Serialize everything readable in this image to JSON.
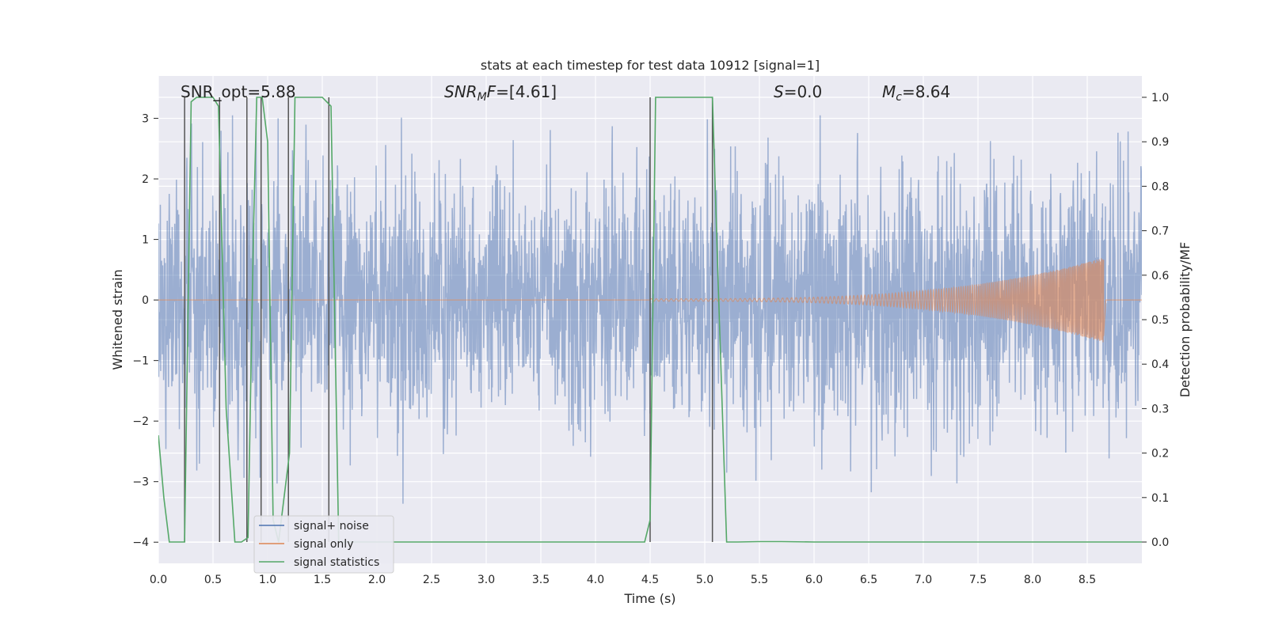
{
  "chart_data": {
    "type": "line",
    "title": "stats at each timestep for test data 10912 [signal=1]",
    "xlabel": "Time (s)",
    "ylabel": "Whitened strain",
    "y2label": "Detection probability/MF",
    "xlim": [
      0.0,
      9.0
    ],
    "ylim": [
      -4.35,
      3.7
    ],
    "y2lim": [
      -0.048,
      1.048
    ],
    "xticks": [
      "0.0",
      "0.5",
      "1.0",
      "1.5",
      "2.0",
      "2.5",
      "3.0",
      "3.5",
      "4.0",
      "4.5",
      "5.0",
      "5.5",
      "6.0",
      "6.5",
      "7.0",
      "7.5",
      "8.0",
      "8.5"
    ],
    "yticks": [
      "3",
      "2",
      "1",
      "0",
      "−1",
      "−2",
      "−3",
      "−4"
    ],
    "y2ticks": [
      "1.0",
      "0.9",
      "0.8",
      "0.7",
      "0.6",
      "0.5",
      "0.4",
      "0.3",
      "0.2",
      "0.1",
      "0.0"
    ],
    "annotations": {
      "snr_opt": "SNR_opt=5.88",
      "snr_mf_sym": "SNR",
      "snr_mf_sub": "M",
      "snr_mf_f": "F",
      "snr_mf_val": "=[4.61]",
      "s_sym": "S",
      "s_val": "=0.0",
      "mc_sym": "M",
      "mc_sub": "c",
      "mc_val": "=8.64"
    },
    "series": [
      {
        "name": "signal+ noise",
        "color": "#4c72b0",
        "style": "dense whitened noise, amplitude approx. -3.4 to 3.0"
      },
      {
        "name": "signal only",
        "color": "#dd8452",
        "style": "chirp growing to approx. 0.7 at 8.65 s",
        "chirp_start": 4.5,
        "chirp_end": 8.65,
        "chirp_peak": 0.7
      },
      {
        "name": "signal statistics",
        "color": "#55a868",
        "x": [
          0.0,
          0.05,
          0.1,
          0.24,
          0.3,
          0.35,
          0.5,
          0.55,
          0.62,
          0.7,
          0.76,
          0.82,
          0.87,
          0.9,
          0.95,
          1.0,
          1.05,
          1.1,
          1.2,
          1.25,
          1.3,
          1.5,
          1.58,
          1.65,
          4.45,
          4.5,
          4.55,
          4.6,
          5.07,
          5.12,
          5.2,
          5.3,
          5.5,
          5.7,
          6.0,
          9.0
        ],
        "y": [
          0.24,
          0.1,
          0.0,
          0.0,
          0.99,
          1.0,
          1.0,
          0.98,
          0.3,
          0.0,
          0.0,
          0.01,
          0.7,
          1.0,
          1.0,
          0.9,
          0.05,
          0.0,
          0.2,
          1.0,
          1.0,
          1.0,
          0.98,
          0.0,
          0.0,
          0.05,
          1.0,
          1.0,
          1.0,
          0.6,
          0.0,
          0.0,
          0.001,
          0.001,
          0.0,
          0.0
        ]
      }
    ],
    "marker_lines": {
      "color": "#555555",
      "x": [
        0.24,
        0.56,
        0.81,
        0.94,
        1.19,
        1.56,
        4.5,
        5.07
      ]
    },
    "legend": {
      "position": "lower-left",
      "entries": [
        "signal+ noise",
        "signal only",
        "signal statistics"
      ]
    },
    "grid": true
  }
}
